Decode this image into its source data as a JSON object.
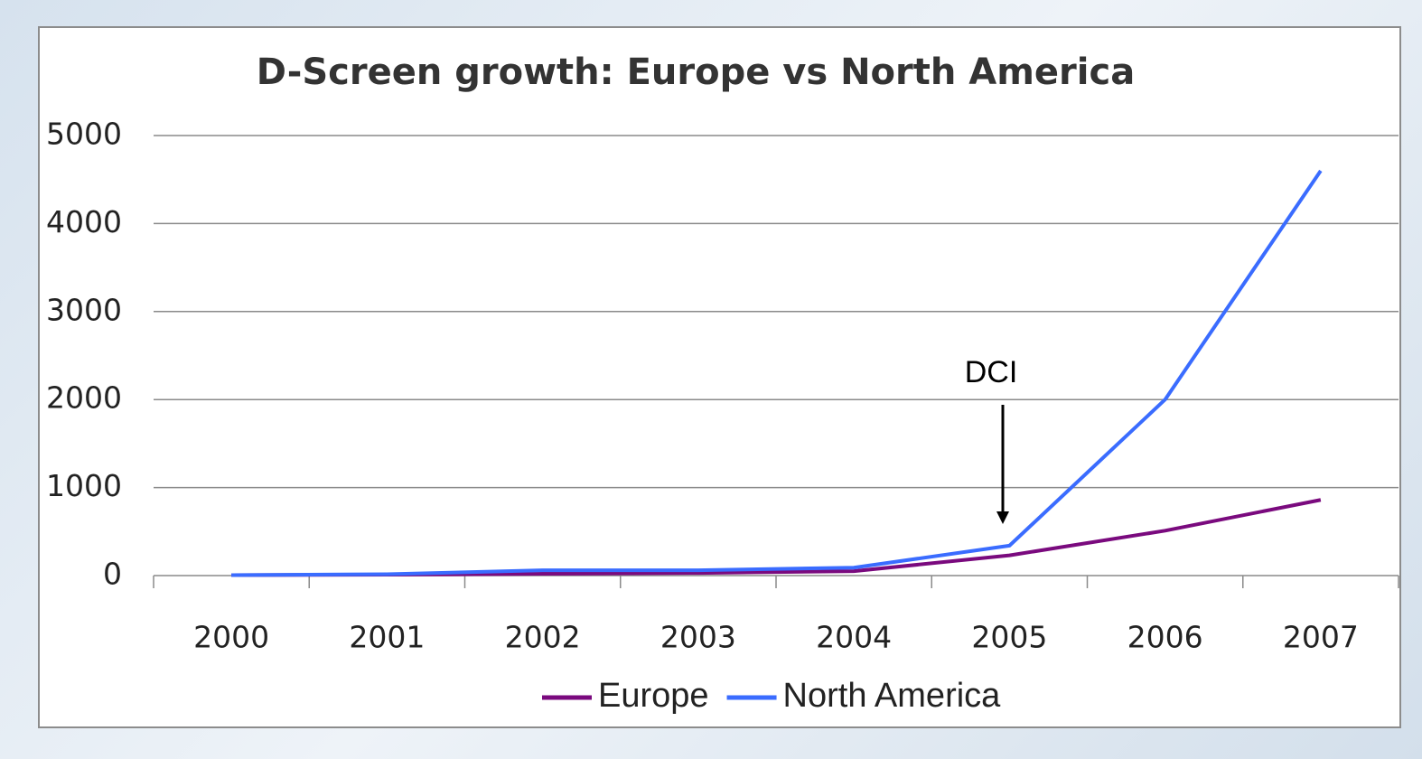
{
  "chart_data": {
    "type": "line",
    "title": "D-Screen growth: Europe vs North America",
    "categories": [
      "2000",
      "2001",
      "2002",
      "2003",
      "2004",
      "2005",
      "2006",
      "2007"
    ],
    "series": [
      {
        "name": "Europe",
        "color": "#7a0a7e",
        "values": [
          5,
          10,
          20,
          30,
          50,
          230,
          510,
          860
        ]
      },
      {
        "name": "North America",
        "color": "#3a6cff",
        "values": [
          5,
          15,
          60,
          60,
          90,
          340,
          2000,
          4600
        ]
      }
    ],
    "ylim": [
      0,
      5000
    ],
    "yticks": [
      0,
      1000,
      2000,
      3000,
      4000,
      5000
    ],
    "grid": true,
    "annotation": "DCI",
    "legend": "bottom"
  }
}
